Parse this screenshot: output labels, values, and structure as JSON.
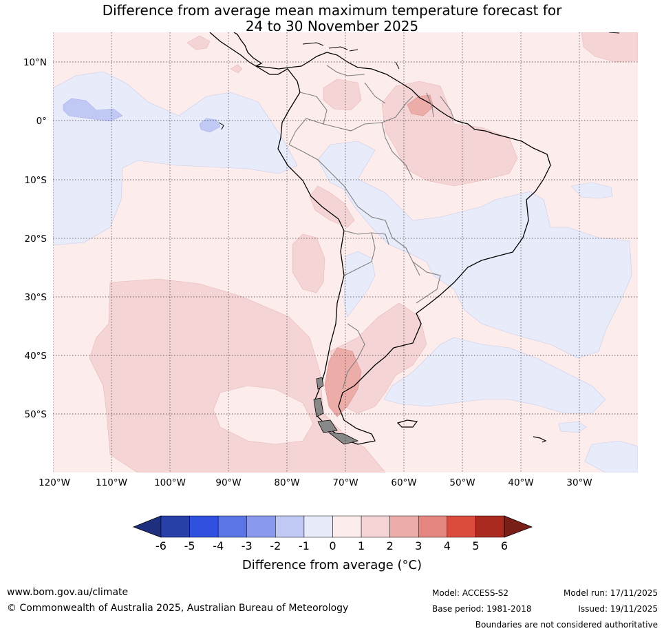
{
  "title": {
    "line1": "Difference from average mean maximum temperature forecast for",
    "line2": "24 to 30 November 2025"
  },
  "map": {
    "lat_labels": [
      "10°N",
      "0°",
      "10°S",
      "20°S",
      "30°S",
      "40°S",
      "50°S"
    ],
    "lon_labels": [
      "120°W",
      "110°W",
      "100°W",
      "90°W",
      "80°W",
      "70°W",
      "60°W",
      "50°W",
      "40°W",
      "30°W"
    ],
    "lat_range": [
      -60,
      15
    ],
    "lon_range": [
      -120,
      -20
    ]
  },
  "colorbar": {
    "ticks": [
      "-6",
      "-5",
      "-4",
      "-3",
      "-2",
      "-1",
      "0",
      "1",
      "2",
      "3",
      "4",
      "5",
      "6"
    ],
    "colors": [
      "#283ea9",
      "#3050e0",
      "#5c75e6",
      "#8899ee",
      "#c0c8f4",
      "#e8ebfa",
      "#fceceb",
      "#f4d4d4",
      "#ecaca8",
      "#e68680",
      "#dc4c3e",
      "#aa2a20"
    ],
    "low_extend_color": "#1e2f7e",
    "high_extend_color": "#7a1e18",
    "label": "Difference from average (°C)"
  },
  "footer": {
    "website": "www.bom.gov.au/climate",
    "copyright": "© Commonwealth of Australia 2025, Australian Bureau of Meteorology",
    "model": "Model: ACCESS-S2",
    "base_period": "Base period: 1981-2018",
    "model_run": "Model run: 17/11/2025",
    "issued": "Issued: 19/11/2025",
    "disclaimer": "Boundaries are not considered authoritative"
  }
}
